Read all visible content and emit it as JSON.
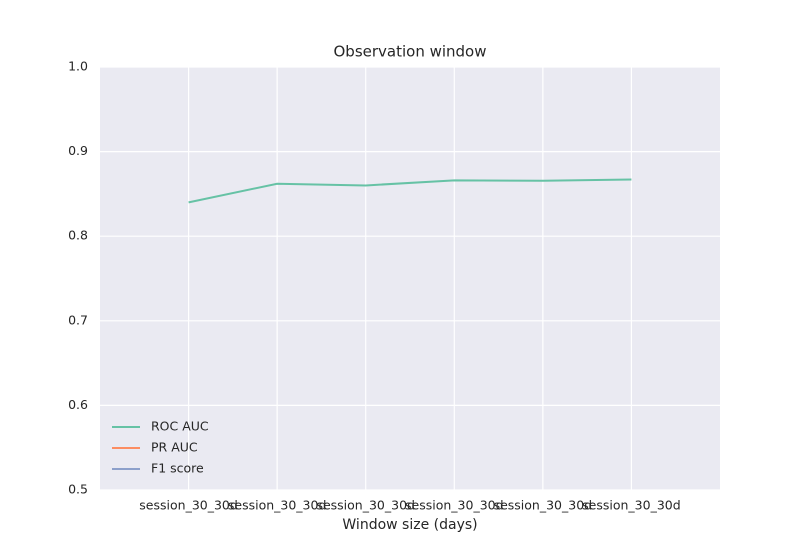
{
  "chart_data": {
    "type": "line",
    "title": "Observation window",
    "xlabel": "Window size (days)",
    "categories": [
      "session_30_30d",
      "session_30_30d",
      "session_30_30d",
      "session_30_30d",
      "session_30_30d",
      "session_30_30d"
    ],
    "series": [
      {
        "name": "ROC AUC",
        "color": "#66c2a5",
        "values": [
          0.84,
          0.862,
          0.86,
          0.866,
          0.8655,
          0.867
        ]
      },
      {
        "name": "PR AUC",
        "color": "#fc8d62",
        "values": [
          null,
          null,
          null,
          null,
          null,
          null
        ]
      },
      {
        "name": "F1 score",
        "color": "#8da0cb",
        "values": [
          null,
          null,
          null,
          null,
          null,
          null
        ]
      }
    ],
    "ylim": [
      0.5,
      1.0
    ],
    "yticks": [
      0.5,
      0.6,
      0.7,
      0.8,
      0.9,
      {
        "value": 1.0,
        "label": "1.0"
      }
    ],
    "grid": true,
    "legend": "lower left"
  }
}
